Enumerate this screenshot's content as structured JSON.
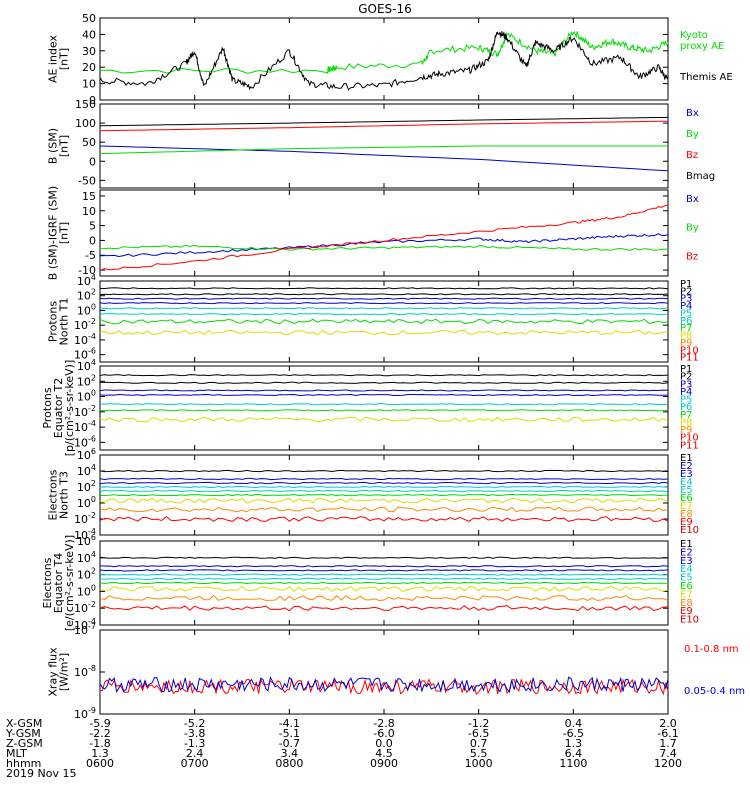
{
  "title": "GOES-16",
  "colors": {
    "black": "#000000",
    "red": "#ff0000",
    "green": "#00dd00",
    "blue": "#0000cc",
    "cyan": "#00cccc",
    "yellow": "#dddd00",
    "orange": "#ff8800",
    "darkred": "#cc0000"
  },
  "chart_data": [
    {
      "id": "ae",
      "type": "line",
      "ylabel": [
        "AE index",
        "[nT]"
      ],
      "yscale": "linear",
      "ylim": [
        0,
        50
      ],
      "yticks": [
        0,
        10,
        20,
        30,
        40,
        50
      ],
      "ytick_labels": [
        "0",
        "10",
        "20",
        "30",
        "40",
        "50"
      ],
      "series": [
        {
          "name": "Kyoto proxy AE",
          "label_lines": [
            "Kyoto",
            "proxy AE"
          ],
          "color": "#00dd00",
          "x": [
            0,
            2.4,
            2.5,
            3.4,
            3.5,
            4.0,
            4.2,
            4.3,
            4.6,
            4.8,
            5.0,
            5.2,
            5.4,
            5.6,
            5.8,
            6.0
          ],
          "y": [
            18,
            18,
            20,
            22,
            30,
            32,
            28,
            40,
            30,
            28,
            42,
            32,
            36,
            32,
            30,
            35
          ]
        },
        {
          "name": "Themis AE",
          "label_lines": [
            "Themis AE"
          ],
          "color": "#000000",
          "x": [
            0,
            0.5,
            0.9,
            1.0,
            1.1,
            1.3,
            1.4,
            1.6,
            2.0,
            2.2,
            2.5,
            3.0,
            3.4,
            3.6,
            3.9,
            4.1,
            4.2,
            4.3,
            4.5,
            4.6,
            4.8,
            5.0,
            5.2,
            5.5,
            5.7,
            5.9,
            6.0
          ],
          "y": [
            12,
            10,
            22,
            30,
            8,
            32,
            12,
            8,
            30,
            10,
            8,
            9,
            14,
            16,
            18,
            24,
            42,
            38,
            20,
            35,
            30,
            38,
            22,
            26,
            14,
            20,
            12
          ]
        }
      ]
    },
    {
      "id": "bsm",
      "type": "line",
      "ylabel": [
        "B (SM)",
        "[nT]"
      ],
      "yscale": "linear",
      "ylim": [
        -70,
        150
      ],
      "yticks": [
        -50,
        0,
        50,
        100,
        150
      ],
      "ytick_labels": [
        "-50",
        "0",
        "50",
        "100",
        "150"
      ],
      "series": [
        {
          "name": "Bx",
          "color": "#0000cc",
          "x": [
            0,
            2,
            4,
            6
          ],
          "y": [
            40,
            26,
            5,
            -25
          ]
        },
        {
          "name": "By",
          "color": "#00dd00",
          "x": [
            0,
            2,
            4,
            6
          ],
          "y": [
            20,
            33,
            40,
            40
          ]
        },
        {
          "name": "Bz",
          "color": "#ff0000",
          "x": [
            0,
            2,
            4,
            6
          ],
          "y": [
            80,
            88,
            98,
            105
          ]
        },
        {
          "name": "Bmag",
          "color": "#000000",
          "x": [
            0,
            2,
            4,
            6
          ],
          "y": [
            93,
            100,
            108,
            115
          ]
        }
      ]
    },
    {
      "id": "bigrf",
      "type": "line",
      "ylabel": [
        "B (SM)-IGRF (SM)",
        "[nT]"
      ],
      "yscale": "linear",
      "ylim": [
        -12,
        17
      ],
      "yticks": [
        -10,
        -5,
        0,
        5,
        10,
        15
      ],
      "ytick_labels": [
        "-10",
        "-5",
        "0",
        "5",
        "10",
        "15"
      ],
      "series": [
        {
          "name": "Bx",
          "color": "#0000cc",
          "x": [
            0,
            1,
            2,
            3,
            4,
            4.5,
            5,
            5.5,
            6
          ],
          "y": [
            -5.5,
            -4,
            -2.5,
            -0.5,
            0.5,
            -0.5,
            0.5,
            1.5,
            2
          ]
        },
        {
          "name": "By",
          "color": "#00dd00",
          "x": [
            0,
            1,
            2,
            3,
            4,
            5,
            6
          ],
          "y": [
            -2.5,
            -2,
            -3,
            -2.5,
            -2,
            -3,
            -3
          ]
        },
        {
          "name": "Bz",
          "color": "#ff0000",
          "x": [
            0,
            1,
            2,
            3,
            4,
            5,
            5.5,
            6
          ],
          "y": [
            -10,
            -7,
            -3,
            0,
            3,
            6,
            8,
            12
          ]
        }
      ]
    },
    {
      "id": "p1",
      "type": "line",
      "ylabel": [
        "Protons",
        "North T1"
      ],
      "yscale": "log",
      "ylim": [
        -7,
        4
      ],
      "yticks": [
        -6,
        -4,
        -2,
        0,
        2,
        4
      ],
      "ytick_labels": [
        "10^-6",
        "10^-4",
        "10^-2",
        "10^0",
        "10^2",
        "10^4"
      ],
      "channels": [
        "P1",
        "P2",
        "P3",
        "P4",
        "P5",
        "P6",
        "P7",
        "P8",
        "P9",
        "P10",
        "P11"
      ],
      "channel_colors": [
        "#000000",
        "#000000",
        "#0000cc",
        "#0000cc",
        "#00cccc",
        "#00cccc",
        "#00dd00",
        "#dddd00",
        "#ff8800",
        "#ff0000",
        "#cc0000"
      ],
      "series": [
        {
          "name": "P1",
          "color": "#000000",
          "y": 3.0
        },
        {
          "name": "P2",
          "color": "#000000",
          "y": 2.2
        },
        {
          "name": "P3",
          "color": "#0000cc",
          "y": 1.6
        },
        {
          "name": "P4",
          "color": "#0000cc",
          "y": 1.0
        },
        {
          "name": "P5",
          "color": "#00cccc",
          "y": 0.3
        },
        {
          "name": "P6",
          "color": "#00cccc",
          "y": -0.5
        },
        {
          "name": "P7",
          "color": "#00dd00",
          "y": -1.5
        },
        {
          "name": "P8",
          "color": "#dddd00",
          "y": -3.0
        }
      ]
    },
    {
      "id": "p2",
      "type": "line",
      "ylabel": [
        "Protons",
        "Equator T2",
        "[p/(cm²-s-sr-keV)]"
      ],
      "yscale": "log",
      "ylim": [
        -7,
        4
      ],
      "yticks": [
        -6,
        -4,
        -2,
        0,
        2,
        4
      ],
      "ytick_labels": [
        "10^-6",
        "10^-4",
        "10^-2",
        "10^0",
        "10^2",
        "10^4"
      ],
      "channels": [
        "P1",
        "P2",
        "P3",
        "P4",
        "P5",
        "P6",
        "P7",
        "P8",
        "P9",
        "P10",
        "P11"
      ],
      "channel_colors": [
        "#000000",
        "#000000",
        "#0000cc",
        "#0000cc",
        "#00cccc",
        "#00cccc",
        "#00dd00",
        "#dddd00",
        "#ff8800",
        "#ff0000",
        "#cc0000"
      ],
      "series": [
        {
          "name": "P1",
          "color": "#000000",
          "y": 2.8
        },
        {
          "name": "P2",
          "color": "#000000",
          "y": 1.8
        },
        {
          "name": "P3",
          "color": "#0000cc",
          "y": 0.8
        },
        {
          "name": "P4",
          "color": "#0000cc",
          "y": 0.2
        },
        {
          "name": "P5",
          "color": "#00cccc",
          "y": -1.0
        },
        {
          "name": "P6",
          "color": "#00dd00",
          "y": -1.8
        },
        {
          "name": "P7",
          "color": "#dddd00",
          "y": -3.0
        }
      ]
    },
    {
      "id": "e1",
      "type": "line",
      "ylabel": [
        "Electrons",
        "North T3"
      ],
      "yscale": "log",
      "ylim": [
        -4,
        6
      ],
      "yticks": [
        -4,
        -2,
        0,
        2,
        4,
        6
      ],
      "ytick_labels": [
        "10^-4",
        "10^-2",
        "10^0",
        "10^2",
        "10^4",
        "10^6"
      ],
      "channels": [
        "E1",
        "E2",
        "E3",
        "E4",
        "E5",
        "E6",
        "E7",
        "E8",
        "E9",
        "E10"
      ],
      "channel_colors": [
        "#000000",
        "#0000cc",
        "#0000cc",
        "#00cccc",
        "#00cccc",
        "#00dd00",
        "#dddd00",
        "#ff8800",
        "#ff0000",
        "#cc0000"
      ],
      "series": [
        {
          "name": "E1",
          "color": "#000000",
          "y": 4.0
        },
        {
          "name": "E2",
          "color": "#0000cc",
          "y": 3.0
        },
        {
          "name": "E3",
          "color": "#0000cc",
          "y": 2.5
        },
        {
          "name": "E4",
          "color": "#00cccc",
          "y": 2.0
        },
        {
          "name": "E5",
          "color": "#00cccc",
          "y": 1.5
        },
        {
          "name": "E6",
          "color": "#00dd00",
          "y": 1.0
        },
        {
          "name": "E7",
          "color": "#dddd00",
          "y": 0.3
        },
        {
          "name": "E8",
          "color": "#ff8800",
          "y": -0.8
        },
        {
          "name": "E9",
          "color": "#ff0000",
          "y": -2.0
        }
      ]
    },
    {
      "id": "e2",
      "type": "line",
      "ylabel": [
        "Electrons",
        "Equator T4",
        "[e/(cm²-s-sr-keV)]"
      ],
      "yscale": "log",
      "ylim": [
        -4,
        6
      ],
      "yticks": [
        -4,
        -2,
        0,
        2,
        4,
        6
      ],
      "ytick_labels": [
        "10^-4",
        "10^-2",
        "10^0",
        "10^2",
        "10^4",
        "10^6"
      ],
      "channels": [
        "E1",
        "E2",
        "E3",
        "E4",
        "E5",
        "E6",
        "E7",
        "E8",
        "E9",
        "E10"
      ],
      "channel_colors": [
        "#000000",
        "#0000cc",
        "#0000cc",
        "#00cccc",
        "#00cccc",
        "#00dd00",
        "#dddd00",
        "#ff8800",
        "#ff0000",
        "#cc0000"
      ],
      "series": [
        {
          "name": "E1",
          "color": "#000000",
          "y": 4.0
        },
        {
          "name": "E2",
          "color": "#0000cc",
          "y": 3.0
        },
        {
          "name": "E3",
          "color": "#0000cc",
          "y": 2.5
        },
        {
          "name": "E4",
          "color": "#00cccc",
          "y": 2.0
        },
        {
          "name": "E5",
          "color": "#00cccc",
          "y": 1.5
        },
        {
          "name": "E6",
          "color": "#00dd00",
          "y": 1.0
        },
        {
          "name": "E7",
          "color": "#dddd00",
          "y": 0.3
        },
        {
          "name": "E8",
          "color": "#ff8800",
          "y": -0.8
        },
        {
          "name": "E9",
          "color": "#ff0000",
          "y": -2.0
        }
      ]
    },
    {
      "id": "xray",
      "type": "line",
      "ylabel": [
        "Xray flux",
        "[W/m²]"
      ],
      "yscale": "log",
      "ylim": [
        -9,
        -7
      ],
      "yticks": [
        -9,
        -8,
        -7
      ],
      "ytick_labels": [
        "10^-9",
        "10^-8",
        "10^-7"
      ],
      "series": [
        {
          "name": "0.1-0.8 nm",
          "color": "#ff0000",
          "ylevel": -8.35
        },
        {
          "name": "0.05-0.4 nm",
          "color": "#0000cc",
          "ylevel": -8.3
        }
      ]
    }
  ],
  "x_axis": {
    "range_hours": [
      6,
      12
    ],
    "tick_hours": [
      6,
      7,
      8,
      9,
      10,
      11,
      12
    ],
    "rows": [
      {
        "label": "X-GSM",
        "values": [
          "-5.9",
          "-5.2",
          "-4.1",
          "-2.8",
          "-1.2",
          "0.4",
          "2.0"
        ]
      },
      {
        "label": "Y-GSM",
        "values": [
          "-2.2",
          "-3.8",
          "-5.1",
          "-6.0",
          "-6.5",
          "-6.5",
          "-6.1"
        ]
      },
      {
        "label": "Z-GSM",
        "values": [
          "-1.8",
          "-1.3",
          "-0.7",
          "0.0",
          "0.7",
          "1.3",
          "1.7"
        ]
      },
      {
        "label": "MLT",
        "values": [
          "1.3",
          "2.4",
          "3.4",
          "4.5",
          "5.5",
          "6.4",
          "7.4"
        ]
      },
      {
        "label": "hhmm",
        "values": [
          "0600",
          "0700",
          "0800",
          "0900",
          "1000",
          "1100",
          "1200"
        ]
      }
    ],
    "date": "2019 Nov 15"
  }
}
